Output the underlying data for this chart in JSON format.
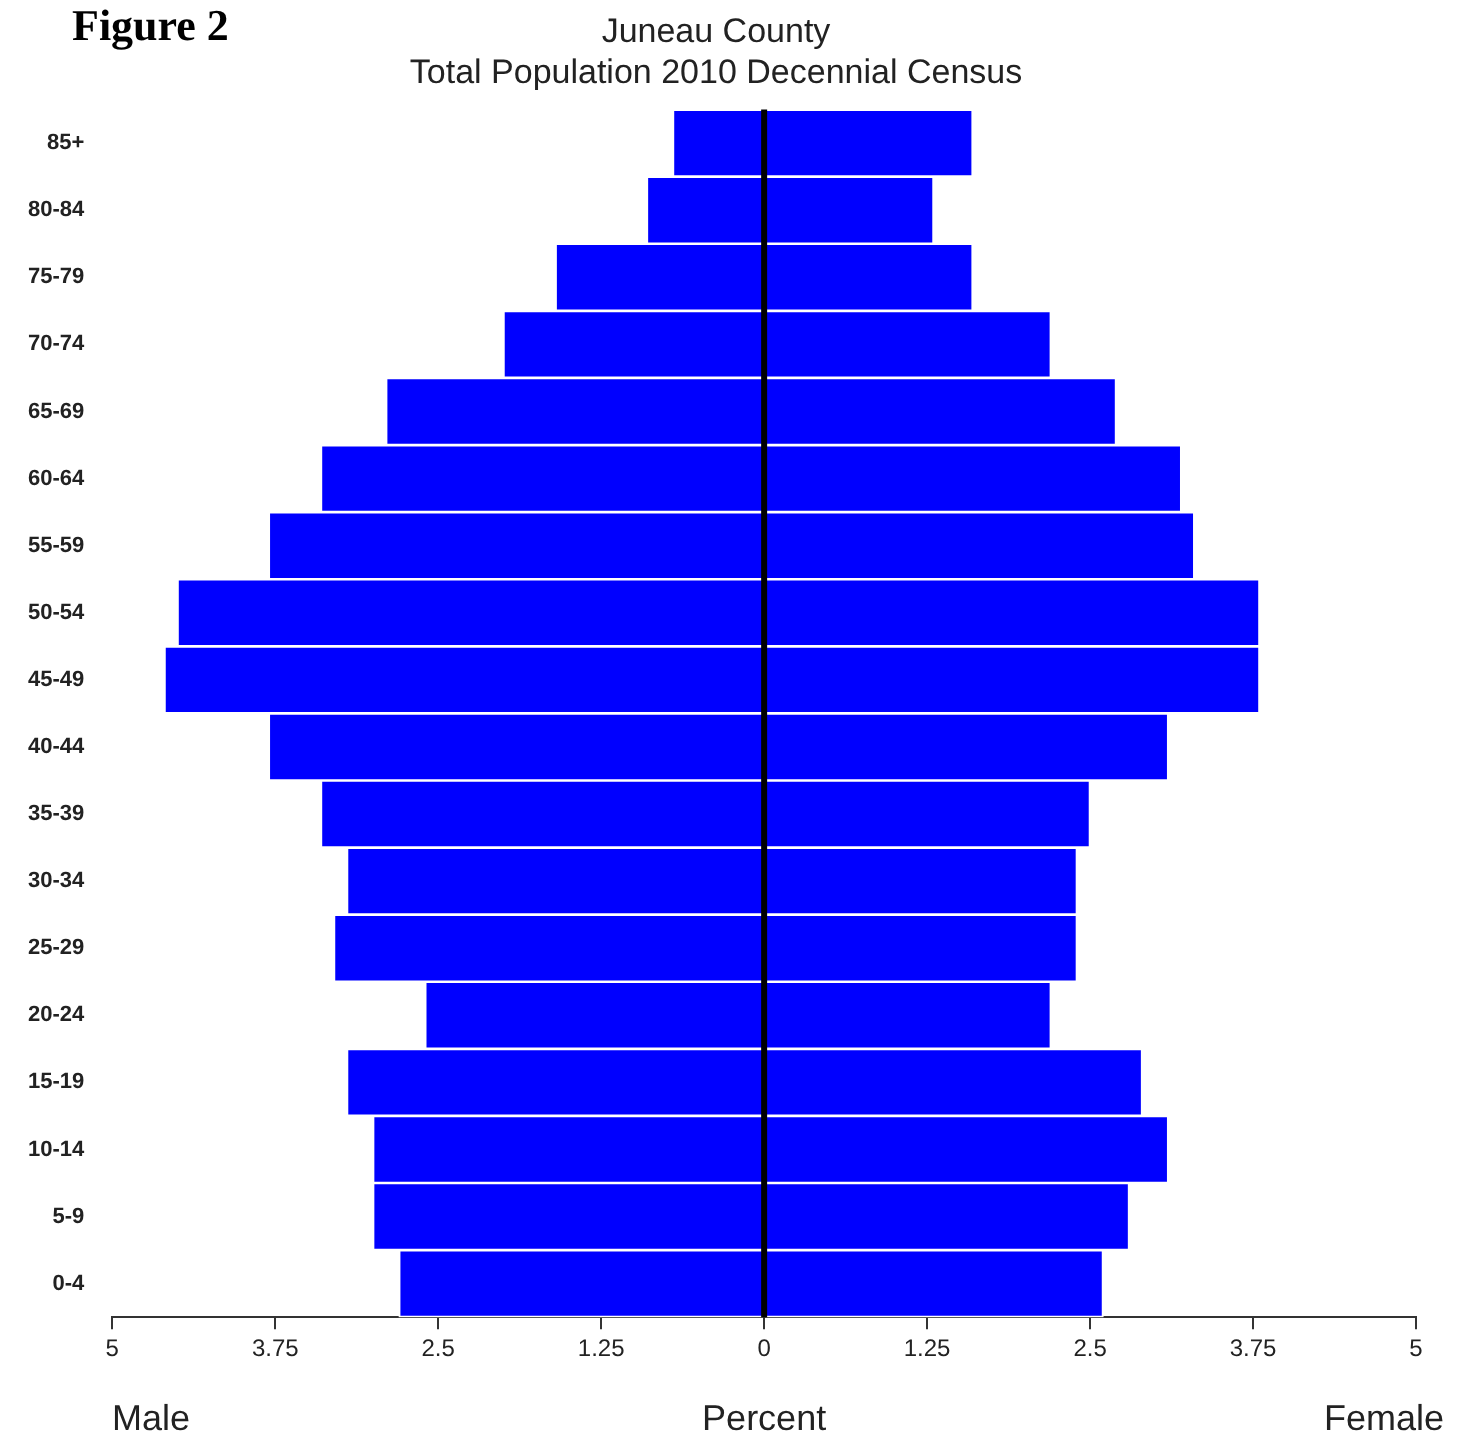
{
  "chart_data": {
    "type": "bar",
    "orientation": "horizontal",
    "stacked": true,
    "title": "Juneau County",
    "subtitle": "Total Population 2010 Decennial Census",
    "xlabel": "Percent",
    "annotations": [
      "Figure 2",
      "Male",
      "Female"
    ],
    "categories": [
      "85+",
      "80-84",
      "75-79",
      "70-74",
      "65-69",
      "60-64",
      "55-59",
      "50-54",
      "45-49",
      "40-44",
      "35-39",
      "30-34",
      "25-29",
      "20-24",
      "15-19",
      "10-14",
      "5-9",
      "0-4"
    ],
    "series": [
      {
        "color": "#0000ff",
        "values": [
          -0.7,
          -0.9,
          -1.6,
          -2.0,
          -2.9,
          -3.4,
          -3.8,
          -4.5,
          -4.6,
          -3.8,
          -3.4,
          -3.2,
          -3.3,
          -2.6,
          -3.2,
          -3.0,
          -3.0,
          -2.8
        ]
      },
      {
        "color": "#0000ff",
        "values": [
          1.6,
          1.3,
          1.6,
          2.2,
          2.7,
          3.2,
          3.3,
          3.8,
          3.8,
          3.1,
          2.5,
          2.4,
          2.4,
          2.2,
          2.9,
          3.1,
          2.8,
          2.6
        ]
      }
    ],
    "xlim": [
      -5,
      5
    ],
    "xticks": [
      {
        "value": -5,
        "label": "5"
      },
      {
        "value": -3.75,
        "label": "3.75"
      },
      {
        "value": -2.5,
        "label": "2.5"
      },
      {
        "value": -1.25,
        "label": "1.25"
      },
      0,
      1.25,
      2.5,
      3.75,
      5
    ],
    "ref_lines": [
      {
        "axis": "x",
        "value": 0,
        "color": "#000000"
      }
    ],
    "grid": false,
    "legend": false
  }
}
